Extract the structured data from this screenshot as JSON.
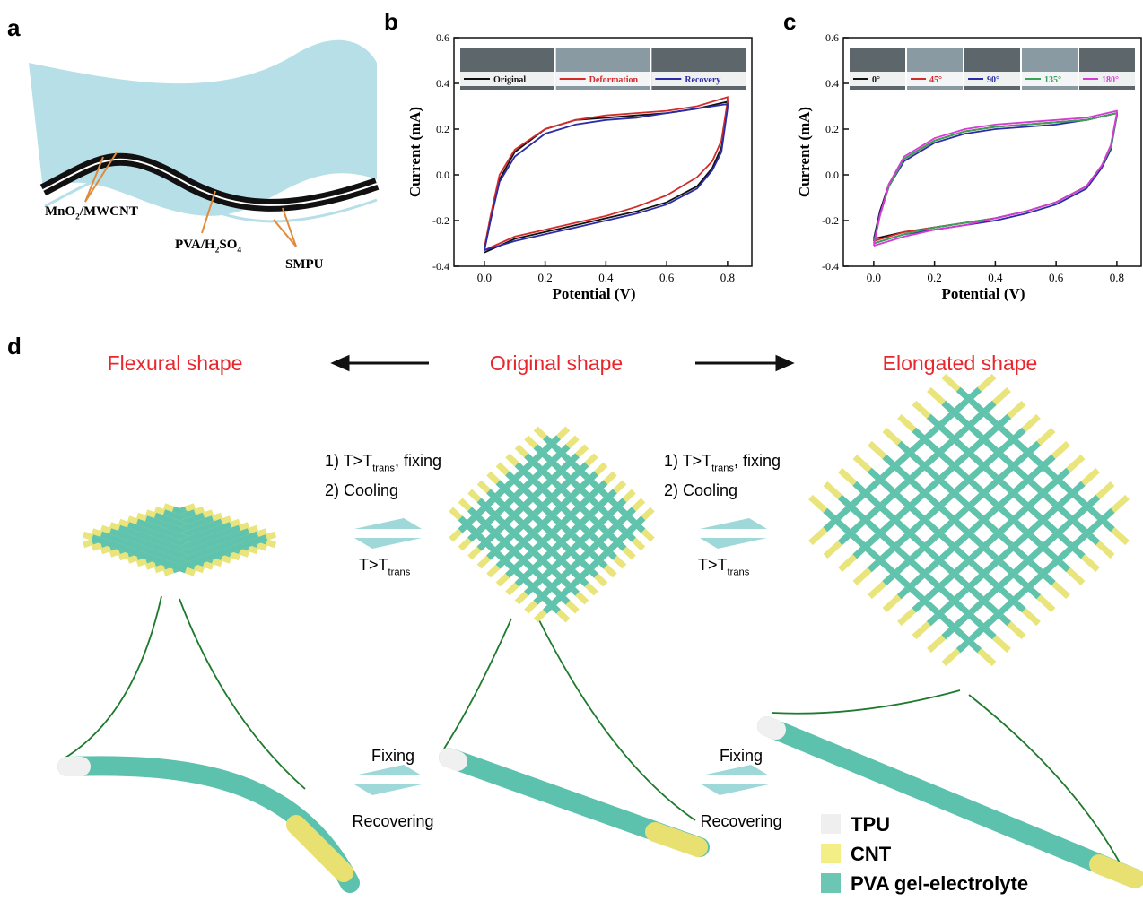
{
  "panel_labels": [
    "a",
    "b",
    "c",
    "d"
  ],
  "panel_a": {
    "labels": [
      [
        "MnO",
        "2",
        "/MWCNT"
      ],
      [
        "PVA/H",
        "2",
        "SO",
        "4"
      ],
      [
        "SMPU"
      ]
    ]
  },
  "chart_data": [
    {
      "type": "line",
      "xlabel": "Potential (V)",
      "ylabel": "Current (mA)",
      "x": [
        0,
        0.02,
        0.05,
        0.1,
        0.2,
        0.3,
        0.4,
        0.5,
        0.6,
        0.7,
        0.8,
        0.8,
        0.78,
        0.75,
        0.7,
        0.6,
        0.5,
        0.4,
        0.3,
        0.2,
        0.1,
        0
      ],
      "xlim": [
        -0.1,
        0.88
      ],
      "ylim": [
        -0.4,
        0.6
      ],
      "xticks": [
        {
          "value": 0,
          "label": "0.0"
        },
        0.2,
        0.4,
        0.6,
        0.8
      ],
      "yticks": [
        -0.4,
        -0.2,
        {
          "value": 0,
          "label": "0.0"
        },
        0.2,
        0.4,
        0.6
      ],
      "series": [
        {
          "name": "Original",
          "color": "#111111",
          "values": [
            -0.33,
            -0.2,
            -0.02,
            0.1,
            0.2,
            0.24,
            0.25,
            0.26,
            0.27,
            0.29,
            0.32,
            0.3,
            0.12,
            0.03,
            -0.05,
            -0.12,
            -0.16,
            -0.19,
            -0.22,
            -0.25,
            -0.28,
            -0.34
          ]
        },
        {
          "name": "Deformation",
          "color": "#d42a2a",
          "values": [
            -0.32,
            -0.18,
            0,
            0.11,
            0.2,
            0.24,
            0.26,
            0.27,
            0.28,
            0.3,
            0.34,
            0.32,
            0.15,
            0.06,
            -0.01,
            -0.09,
            -0.14,
            -0.18,
            -0.21,
            -0.24,
            -0.27,
            -0.33
          ]
        },
        {
          "name": "Recovery",
          "color": "#2b2ba8",
          "values": [
            -0.33,
            -0.2,
            -0.03,
            0.08,
            0.18,
            0.22,
            0.24,
            0.25,
            0.27,
            0.29,
            0.31,
            0.29,
            0.1,
            0.02,
            -0.06,
            -0.13,
            -0.17,
            -0.2,
            -0.23,
            -0.26,
            -0.29,
            -0.33
          ]
        }
      ]
    },
    {
      "type": "line",
      "xlabel": "Potential (V)",
      "ylabel": "Current (mA)",
      "x": [
        0,
        0.02,
        0.05,
        0.1,
        0.2,
        0.3,
        0.4,
        0.5,
        0.6,
        0.7,
        0.8,
        0.8,
        0.78,
        0.75,
        0.7,
        0.6,
        0.5,
        0.4,
        0.3,
        0.2,
        0.1,
        0
      ],
      "xlim": [
        -0.1,
        0.88
      ],
      "ylim": [
        -0.4,
        0.6
      ],
      "xticks": [
        {
          "value": 0,
          "label": "0.0"
        },
        0.2,
        0.4,
        0.6,
        0.8
      ],
      "yticks": [
        -0.4,
        -0.2,
        {
          "value": 0,
          "label": "0.0"
        },
        0.2,
        0.4,
        0.6
      ],
      "series": [
        {
          "name": "0°",
          "color": "#111111",
          "values": [
            -0.28,
            -0.16,
            -0.04,
            0.07,
            0.15,
            0.19,
            0.21,
            0.22,
            0.23,
            0.24,
            0.27,
            0.26,
            0.12,
            0.04,
            -0.05,
            -0.12,
            -0.16,
            -0.19,
            -0.21,
            -0.23,
            -0.25,
            -0.28
          ]
        },
        {
          "name": "45°",
          "color": "#d42a2a",
          "values": [
            -0.29,
            -0.17,
            -0.05,
            0.07,
            0.15,
            0.19,
            0.21,
            0.22,
            0.23,
            0.24,
            0.27,
            0.26,
            0.12,
            0.04,
            -0.05,
            -0.12,
            -0.16,
            -0.19,
            -0.21,
            -0.23,
            -0.25,
            -0.29
          ]
        },
        {
          "name": "90°",
          "color": "#2b2ba8",
          "values": [
            -0.29,
            -0.17,
            -0.05,
            0.06,
            0.14,
            0.18,
            0.2,
            0.21,
            0.22,
            0.24,
            0.27,
            0.26,
            0.11,
            0.03,
            -0.06,
            -0.13,
            -0.17,
            -0.2,
            -0.22,
            -0.24,
            -0.26,
            -0.3
          ]
        },
        {
          "name": "135°",
          "color": "#3aa35a",
          "values": [
            -0.3,
            -0.18,
            -0.05,
            0.07,
            0.15,
            0.19,
            0.21,
            0.22,
            0.23,
            0.24,
            0.27,
            0.26,
            0.12,
            0.04,
            -0.05,
            -0.12,
            -0.16,
            -0.19,
            -0.21,
            -0.23,
            -0.26,
            -0.3
          ]
        },
        {
          "name": "180°",
          "color": "#d63ad6",
          "values": [
            -0.31,
            -0.18,
            -0.04,
            0.08,
            0.16,
            0.2,
            0.22,
            0.23,
            0.24,
            0.25,
            0.28,
            0.27,
            0.13,
            0.04,
            -0.05,
            -0.12,
            -0.16,
            -0.19,
            -0.22,
            -0.24,
            -0.27,
            -0.31
          ]
        }
      ]
    }
  ],
  "panel_d": {
    "shape_titles": [
      "Flexural shape",
      "Original shape",
      "Elongated shape"
    ],
    "conditions": [
      {
        "step1": [
          "1) T>T",
          "trans",
          ", fixing"
        ],
        "step2": "2) Cooling",
        "reverse": [
          "T>T",
          "trans"
        ]
      },
      {
        "step1": [
          "1) T>T",
          "trans",
          ", fixing"
        ],
        "step2": "2) Cooling",
        "reverse": [
          "T>T",
          "trans"
        ]
      }
    ],
    "fiber_steps": [
      {
        "forward": "Fixing",
        "reverse": "Recovering"
      },
      {
        "forward": "Fixing",
        "reverse": "Recovering"
      }
    ],
    "legend": [
      {
        "name": "TPU",
        "color": "#efefef"
      },
      {
        "name": "CNT",
        "color": "#f3ef86"
      },
      {
        "name": "PVA gel-electrolyte",
        "color": "#6cc6b4"
      }
    ]
  }
}
